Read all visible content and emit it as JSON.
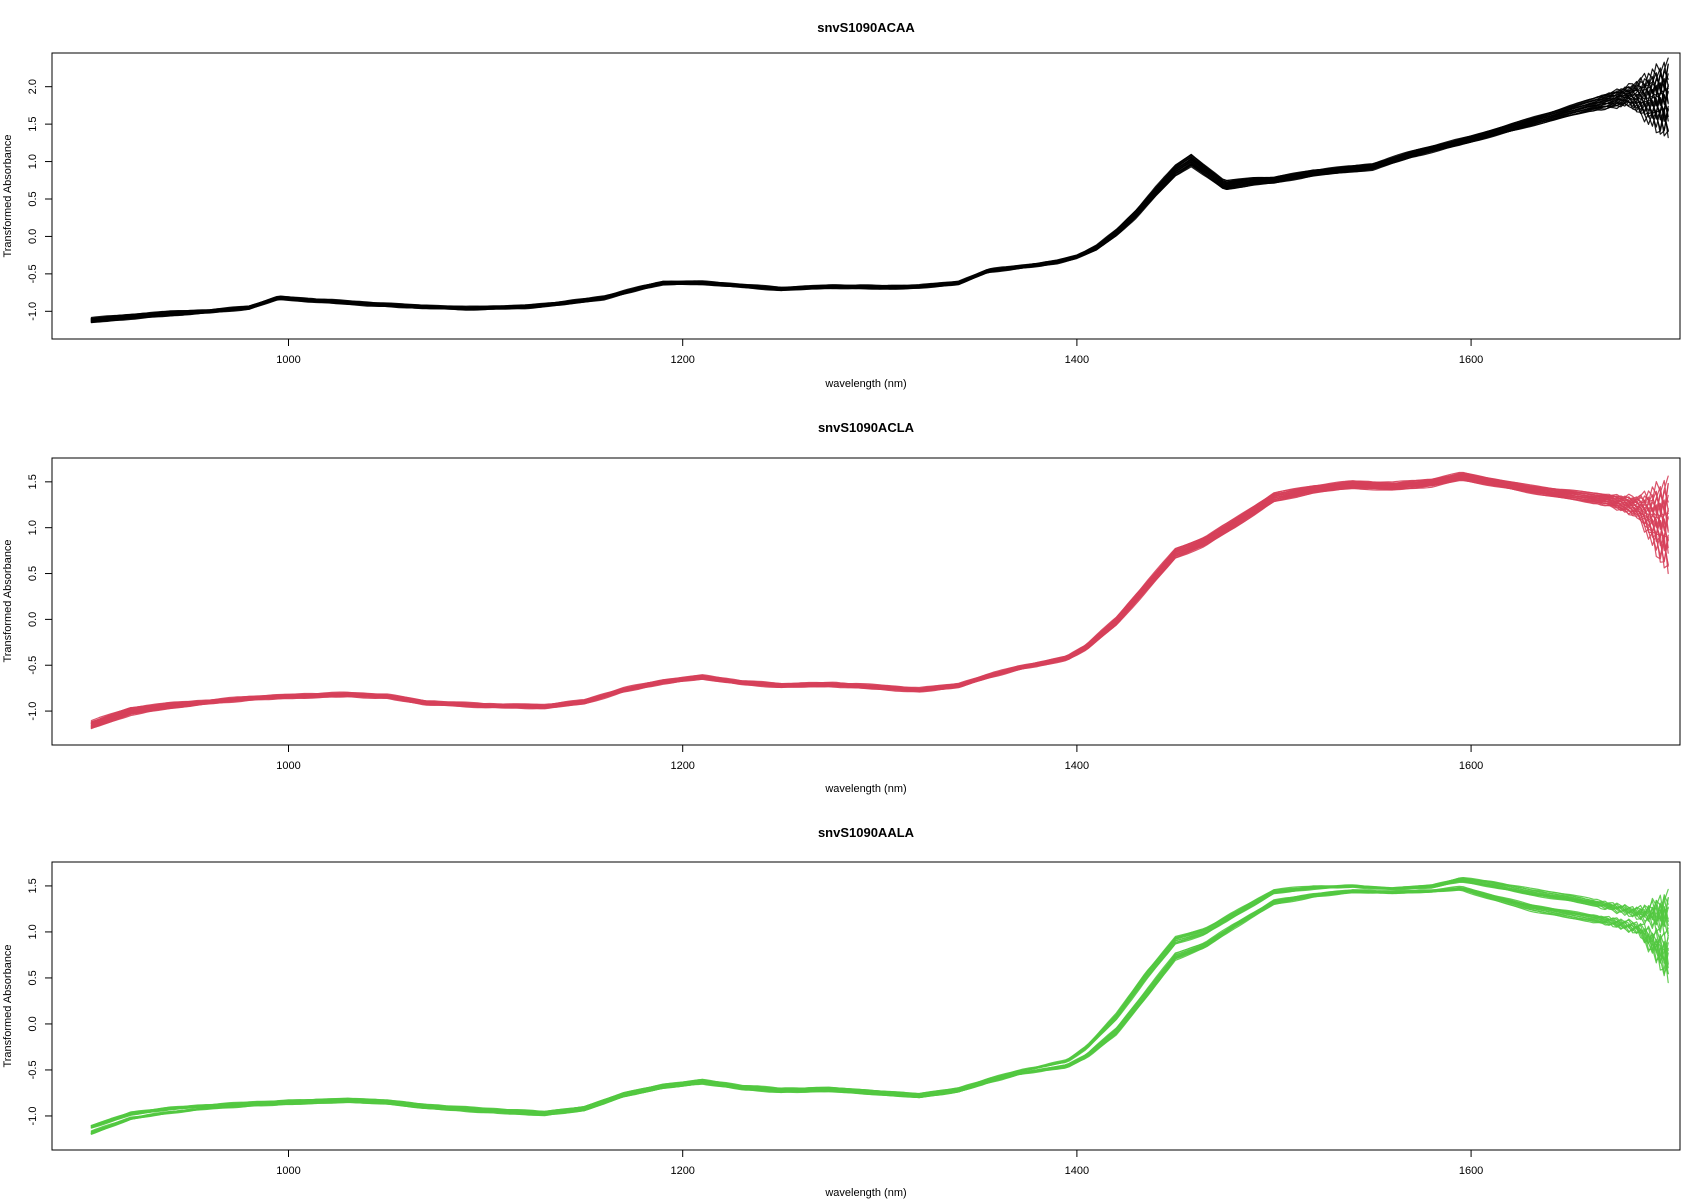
{
  "chart_data": [
    {
      "type": "line",
      "title": "snvS1090ACAA",
      "xlabel": "wavelength (nm)",
      "ylabel": "Transformed Absorbance",
      "xlim": [
        880,
        1706
      ],
      "ylim": [
        -1.37,
        2.45
      ],
      "x_ticks": [
        1000,
        1200,
        1400,
        1600
      ],
      "x_tick_labels": [
        "1000",
        "1200",
        "1400",
        "1600"
      ],
      "y_ticks": [
        -1.0,
        -0.5,
        0.0,
        0.5,
        1.0,
        1.5,
        2.0
      ],
      "y_tick_labels": [
        "-1.0",
        "-0.5",
        "0.0",
        "0.5",
        "1.0",
        "1.5",
        "2.0"
      ],
      "grid": false,
      "color": "#000000",
      "n_curves": "many",
      "x": [
        900,
        920,
        940,
        960,
        980,
        995,
        1010,
        1040,
        1060,
        1090,
        1120,
        1140,
        1160,
        1180,
        1190,
        1210,
        1230,
        1250,
        1275,
        1300,
        1320,
        1340,
        1355,
        1370,
        1380,
        1390,
        1400,
        1410,
        1420,
        1430,
        1440,
        1450,
        1458,
        1465,
        1475,
        1490,
        1500,
        1520,
        1550,
        1570,
        1600,
        1620,
        1640,
        1660,
        1680,
        1700
      ],
      "y": [
        -1.12,
        -1.07,
        -1.03,
        -1.0,
        -0.95,
        -0.82,
        -0.85,
        -0.9,
        -0.93,
        -0.96,
        -0.94,
        -0.89,
        -0.82,
        -0.68,
        -0.62,
        -0.62,
        -0.66,
        -0.7,
        -0.67,
        -0.68,
        -0.67,
        -0.62,
        -0.46,
        -0.41,
        -0.38,
        -0.34,
        -0.27,
        -0.15,
        0.05,
        0.3,
        0.6,
        0.88,
        1.02,
        0.88,
        0.68,
        0.74,
        0.75,
        0.85,
        0.93,
        1.1,
        1.3,
        1.45,
        1.6,
        1.75,
        1.88,
        1.82
      ],
      "band": [
        0.03,
        0.03,
        0.03,
        0.02,
        0.02,
        0.02,
        0.02,
        0.02,
        0.02,
        0.02,
        0.02,
        0.02,
        0.02,
        0.02,
        0.02,
        0.02,
        0.02,
        0.02,
        0.02,
        0.02,
        0.02,
        0.02,
        0.02,
        0.02,
        0.02,
        0.02,
        0.02,
        0.03,
        0.04,
        0.05,
        0.06,
        0.07,
        0.08,
        0.07,
        0.06,
        0.05,
        0.04,
        0.04,
        0.04,
        0.04,
        0.04,
        0.05,
        0.06,
        0.08,
        0.12,
        0.4
      ]
    },
    {
      "type": "line",
      "title": "snvS1090ACLA",
      "xlabel": "wavelength (nm)",
      "ylabel": "Transformed Absorbance",
      "xlim": [
        880,
        1706
      ],
      "ylim": [
        -1.37,
        1.76
      ],
      "x_ticks": [
        1000,
        1200,
        1400,
        1600
      ],
      "x_tick_labels": [
        "1000",
        "1200",
        "1400",
        "1600"
      ],
      "y_ticks": [
        -1.0,
        -0.5,
        0.0,
        0.5,
        1.0,
        1.5
      ],
      "y_tick_labels": [
        "-1.0",
        "-0.5",
        "0.0",
        "0.5",
        "1.0",
        "1.5"
      ],
      "grid": false,
      "color": "#d6405a",
      "n_curves": "many",
      "x": [
        900,
        920,
        940,
        960,
        980,
        1000,
        1030,
        1050,
        1070,
        1100,
        1130,
        1150,
        1170,
        1190,
        1210,
        1230,
        1250,
        1275,
        1300,
        1320,
        1340,
        1355,
        1370,
        1385,
        1395,
        1405,
        1420,
        1435,
        1450,
        1465,
        1480,
        1500,
        1520,
        1540,
        1560,
        1580,
        1595,
        1610,
        1630,
        1650,
        1670,
        1685,
        1700
      ],
      "y": [
        -1.15,
        -1.0,
        -0.94,
        -0.9,
        -0.86,
        -0.84,
        -0.82,
        -0.84,
        -0.91,
        -0.94,
        -0.95,
        -0.9,
        -0.77,
        -0.68,
        -0.63,
        -0.69,
        -0.72,
        -0.71,
        -0.74,
        -0.77,
        -0.72,
        -0.62,
        -0.53,
        -0.47,
        -0.42,
        -0.3,
        -0.02,
        0.35,
        0.72,
        0.85,
        1.05,
        1.33,
        1.42,
        1.47,
        1.45,
        1.49,
        1.56,
        1.5,
        1.42,
        1.36,
        1.3,
        1.22,
        1.0
      ],
      "band": [
        0.04,
        0.04,
        0.03,
        0.02,
        0.02,
        0.02,
        0.02,
        0.02,
        0.02,
        0.02,
        0.02,
        0.02,
        0.02,
        0.02,
        0.02,
        0.02,
        0.02,
        0.02,
        0.02,
        0.02,
        0.02,
        0.02,
        0.02,
        0.02,
        0.02,
        0.03,
        0.04,
        0.05,
        0.05,
        0.05,
        0.05,
        0.05,
        0.04,
        0.04,
        0.04,
        0.04,
        0.04,
        0.04,
        0.04,
        0.05,
        0.06,
        0.1,
        0.4
      ]
    },
    {
      "type": "line",
      "title": "snvS1090AALA",
      "xlabel": "wavelength (nm)",
      "ylabel": "Transformed Absorbance",
      "xlim": [
        880,
        1706
      ],
      "ylim": [
        -1.37,
        1.76
      ],
      "x_ticks": [
        1000,
        1200,
        1400,
        1600
      ],
      "x_tick_labels": [
        "1000",
        "1200",
        "1400",
        "1600"
      ],
      "y_ticks": [
        -1.0,
        -0.5,
        0.0,
        0.5,
        1.0,
        1.5
      ],
      "y_tick_labels": [
        "-1.0",
        "-0.5",
        "0.0",
        "0.5",
        "1.0",
        "1.5"
      ],
      "grid": false,
      "color": "#52c840",
      "n_curves": "many",
      "x": [
        900,
        920,
        940,
        960,
        980,
        1000,
        1030,
        1050,
        1070,
        1100,
        1130,
        1150,
        1170,
        1190,
        1210,
        1230,
        1250,
        1275,
        1300,
        1320,
        1340,
        1355,
        1370,
        1385,
        1395,
        1405,
        1420,
        1435,
        1450,
        1465,
        1480,
        1500,
        1520,
        1540,
        1560,
        1580,
        1595,
        1610,
        1630,
        1650,
        1670,
        1685,
        1700
      ],
      "y": [
        -1.15,
        -1.0,
        -0.94,
        -0.9,
        -0.87,
        -0.85,
        -0.83,
        -0.85,
        -0.9,
        -0.94,
        -0.97,
        -0.92,
        -0.77,
        -0.68,
        -0.63,
        -0.69,
        -0.72,
        -0.71,
        -0.75,
        -0.78,
        -0.72,
        -0.62,
        -0.53,
        -0.47,
        -0.43,
        -0.3,
        0.0,
        0.42,
        0.82,
        0.93,
        1.13,
        1.38,
        1.44,
        1.47,
        1.45,
        1.47,
        1.52,
        1.45,
        1.35,
        1.28,
        1.2,
        1.12,
        0.95
      ],
      "band": [
        0.05,
        0.04,
        0.03,
        0.02,
        0.02,
        0.02,
        0.02,
        0.02,
        0.02,
        0.02,
        0.02,
        0.02,
        0.02,
        0.02,
        0.02,
        0.02,
        0.02,
        0.02,
        0.02,
        0.02,
        0.02,
        0.02,
        0.02,
        0.03,
        0.04,
        0.07,
        0.12,
        0.15,
        0.13,
        0.11,
        0.09,
        0.08,
        0.06,
        0.04,
        0.03,
        0.04,
        0.07,
        0.1,
        0.12,
        0.13,
        0.12,
        0.12,
        0.35
      ]
    }
  ]
}
